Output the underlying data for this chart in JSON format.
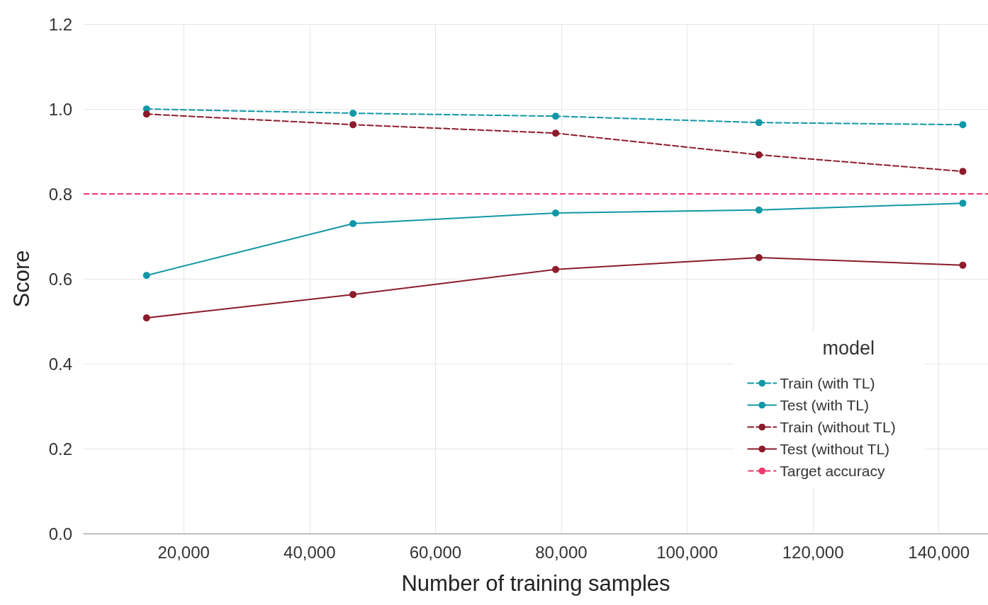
{
  "chart_data": {
    "type": "line",
    "xlabel": "Number of training samples",
    "ylabel": "Score",
    "legend_title": "model",
    "x": [
      14100,
      46900,
      79100,
      111400,
      143800
    ],
    "series": [
      {
        "name": "Train (with TL)",
        "color": "#1297a6",
        "line_style": "dashed",
        "values": [
          1.0,
          0.99,
          0.983,
          0.968,
          0.963
        ]
      },
      {
        "name": "Test (with TL)",
        "color": "#1297a6",
        "line_style": "solid",
        "values": [
          0.608,
          0.73,
          0.755,
          0.762,
          0.778
        ]
      },
      {
        "name": "Train (without TL)",
        "color": "#8c1c2a",
        "line_style": "dashed",
        "values": [
          0.988,
          0.963,
          0.943,
          0.892,
          0.853
        ]
      },
      {
        "name": "Test (without TL)",
        "color": "#8c1c2a",
        "line_style": "solid",
        "values": [
          0.508,
          0.563,
          0.622,
          0.65,
          0.632
        ]
      }
    ],
    "ref_lines": [
      {
        "axis": "y",
        "value": 0.8,
        "label": "Target accuracy",
        "color": "#f0386b",
        "line_style": "dashed"
      }
    ],
    "xlim": [
      4100,
      147800
    ],
    "xticks": [
      {
        "value": 20000,
        "label": "20,000"
      },
      {
        "value": 40000,
        "label": "40,000"
      },
      {
        "value": 60000,
        "label": "60,000"
      },
      {
        "value": 80000,
        "label": "80,000"
      },
      {
        "value": 100000,
        "label": "100,000"
      },
      {
        "value": 120000,
        "label": "120,000"
      },
      {
        "value": 140000,
        "label": "140,000"
      }
    ],
    "ylim": [
      0,
      1.2
    ],
    "yticks": [
      {
        "value": 0,
        "label": "0.0"
      },
      0.2,
      0.4,
      0.6,
      0.8,
      {
        "value": 1.0,
        "label": "1.0"
      },
      1.2
    ],
    "grid": true,
    "legend": "bottom right",
    "marker": "circle"
  }
}
